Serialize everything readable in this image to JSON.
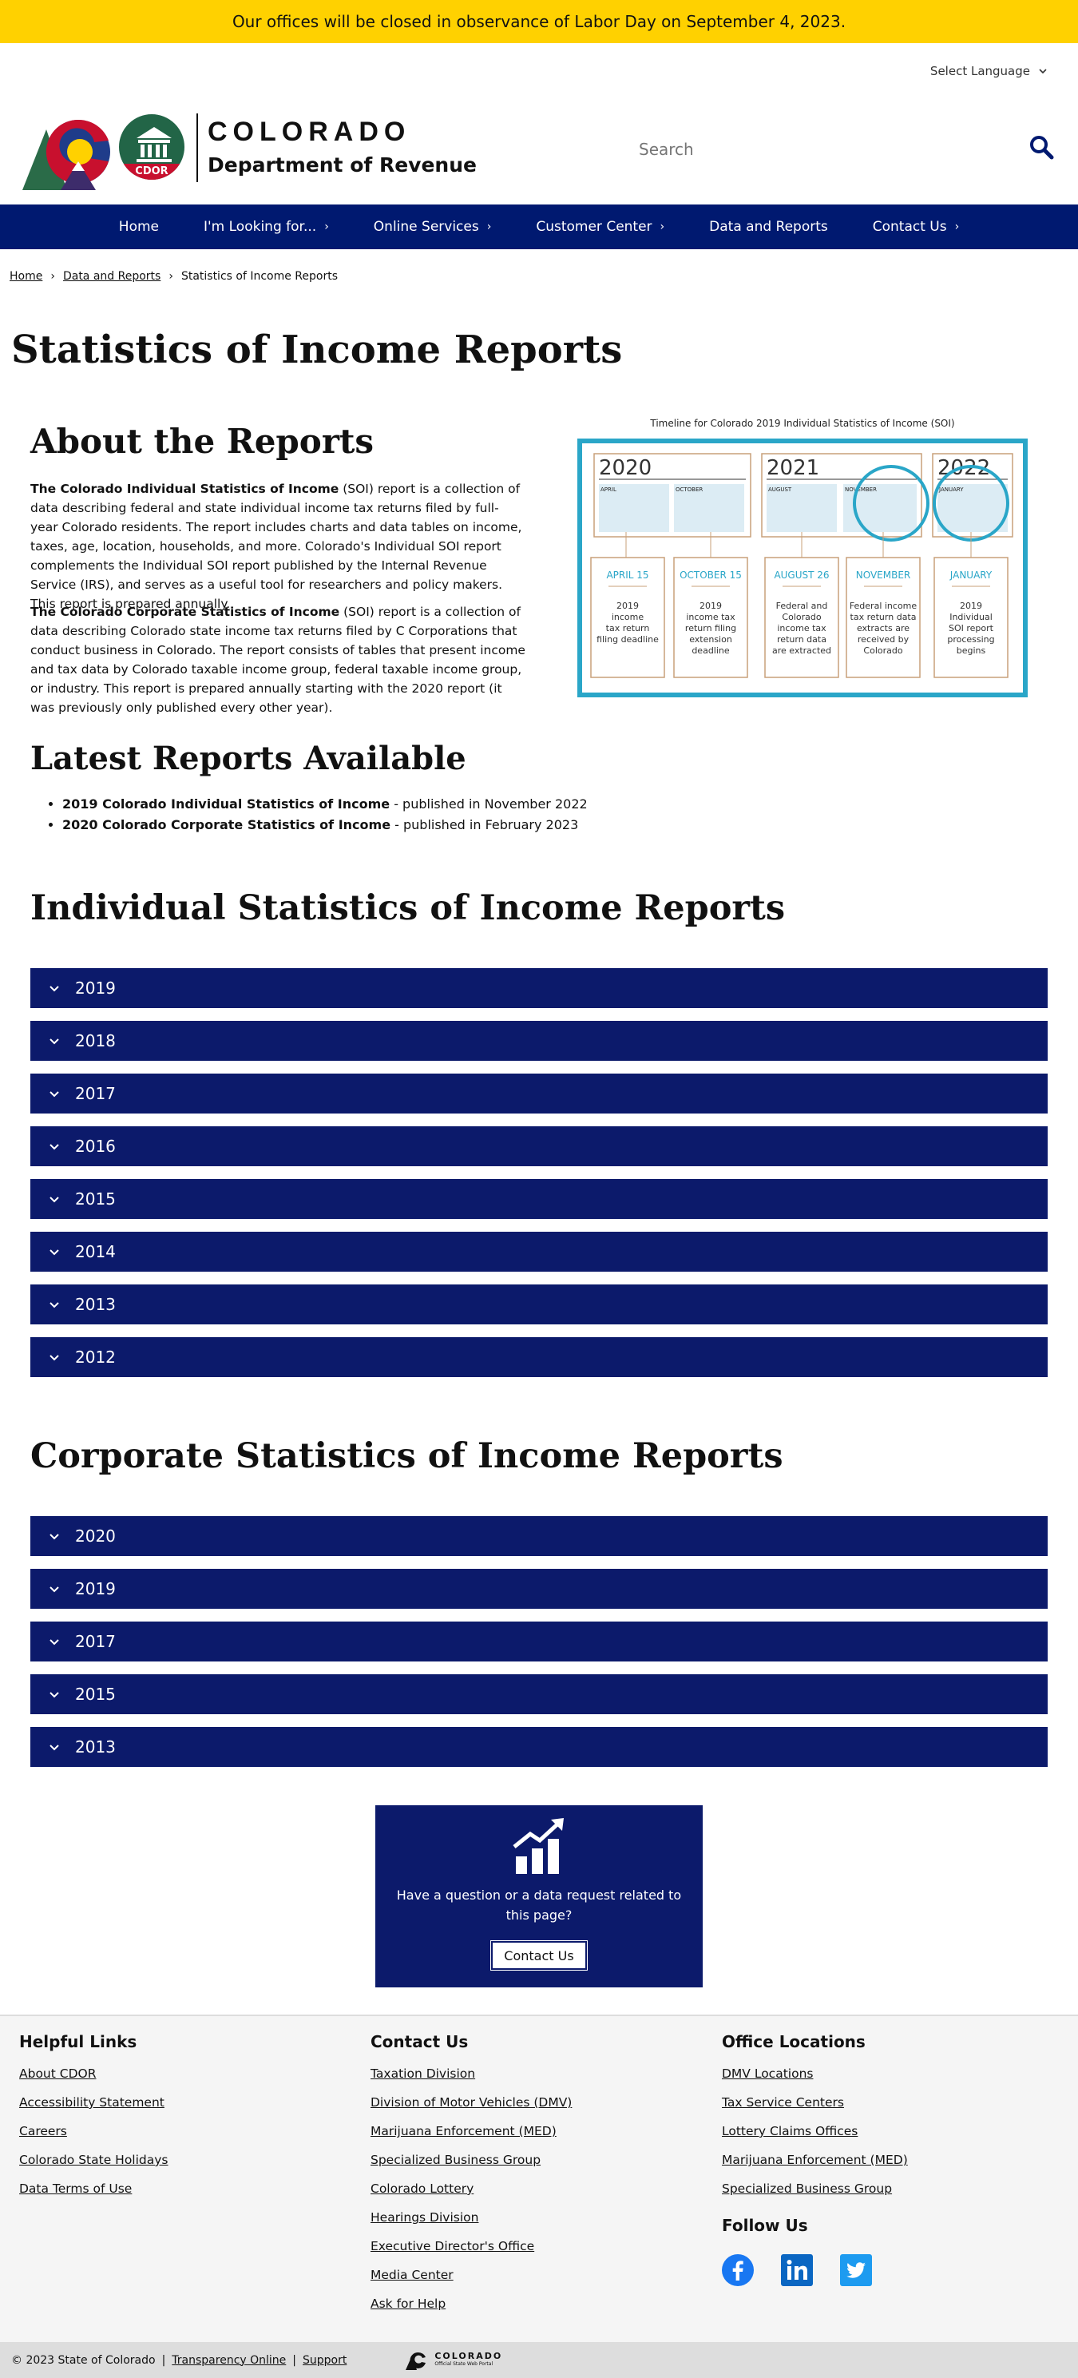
{
  "alert": {
    "text": "Our offices will be closed in observance of Labor Day on September 4, 2023."
  },
  "language": {
    "label": "Select Language"
  },
  "header": {
    "state_name": "COLORADO",
    "department": "Department of Revenue",
    "cdor_badge": "CDOR",
    "search_placeholder": "Search"
  },
  "nav": [
    {
      "label": "Home",
      "has_chevron": false
    },
    {
      "label": "I'm Looking for...",
      "has_chevron": true
    },
    {
      "label": "Online Services",
      "has_chevron": true
    },
    {
      "label": "Customer Center",
      "has_chevron": true
    },
    {
      "label": "Data and Reports",
      "has_chevron": false
    },
    {
      "label": "Contact Us",
      "has_chevron": true
    }
  ],
  "breadcrumb": {
    "home": "Home",
    "data": "Data and Reports",
    "current": "Statistics of Income Reports"
  },
  "page_title": "Statistics of Income Reports",
  "about": {
    "title": "About the Reports",
    "p1_bold": "The Colorado Individual Statistics of Income",
    "p1_rest": " (SOI) report is a collection of data describing federal and state individual income tax returns filed by full-year Colorado residents. The report includes charts and data tables on income, taxes, age, location, households, and more. Colorado's Individual SOI report complements the Individual SOI report published by the Internal Revenue Service (IRS), and serves as a useful tool for researchers and policy makers. This report is prepared annually.",
    "p2_bold": "The Colorado Corporate Statistics of Income",
    "p2_rest": " (SOI) report is a collection of data describing Colorado state income tax returns filed by C Corporations that conduct business in Colorado. The report consists of tables that present income and tax data by Colorado taxable income group, federal taxable income group, or industry. This report is prepared annually starting with the 2020 report (it was previously only published every other year)."
  },
  "timeline": {
    "title": "Timeline for Colorado 2019 Individual Statistics of Income (SOI)",
    "years": [
      "2020",
      "2021",
      "2022"
    ],
    "months": [
      "APRIL",
      "OCTOBER",
      "AUGUST",
      "NOVEMBER",
      "JANUARY"
    ],
    "cards": [
      {
        "date": "APRIL 15",
        "line1": "2019",
        "line2": "income",
        "line3": "tax return",
        "line4": "filing deadline",
        "line5": ""
      },
      {
        "date": "OCTOBER 15",
        "line1": "2019",
        "line2": "income tax",
        "line3": "return filing",
        "line4": "extension",
        "line5": "deadline"
      },
      {
        "date": "AUGUST 26",
        "line1": "Federal and",
        "line2": "Colorado",
        "line3": "income tax",
        "line4": "return data",
        "line5": "are extracted"
      },
      {
        "date": "NOVEMBER",
        "line1": "Federal income",
        "line2": "tax return data",
        "line3": "extracts are",
        "line4": "received by",
        "line5": "Colorado"
      },
      {
        "date": "JANUARY",
        "line1": "2019",
        "line2": "Individual",
        "line3": "SOI report",
        "line4": "processing",
        "line5": "begins"
      }
    ]
  },
  "latest": {
    "title": "Latest Reports Available",
    "items": [
      {
        "bold": "2019 Colorado Individual Statistics of Income",
        "rest": " - published in November 2022"
      },
      {
        "bold": "2020 Colorado Corporate Statistics of Income",
        "rest": " - published in February 2023"
      }
    ]
  },
  "individual": {
    "title": "Individual Statistics of Income Reports",
    "years": [
      "2019",
      "2018",
      "2017",
      "2016",
      "2015",
      "2014",
      "2013",
      "2012"
    ]
  },
  "corporate": {
    "title": "Corporate Statistics of Income Reports",
    "years": [
      "2020",
      "2019",
      "2017",
      "2015",
      "2013"
    ]
  },
  "cta": {
    "text": "Have a question or a data request related to this page?",
    "button": "Contact Us"
  },
  "footer": {
    "helpful": {
      "title": "Helpful Links",
      "links": [
        "About CDOR",
        "Accessibility Statement",
        "Careers",
        "Colorado State Holidays",
        "Data Terms of Use"
      ]
    },
    "contact": {
      "title": "Contact Us",
      "links": [
        "Taxation Division",
        "Division of Motor Vehicles (DMV)",
        "Marijuana Enforcement (MED)",
        "Specialized Business Group",
        "Colorado Lottery",
        "Hearings Division",
        "Executive Director's Office",
        "Media Center",
        "Ask for Help"
      ]
    },
    "offices": {
      "title": "Office Locations",
      "links": [
        "DMV Locations",
        "Tax Service Centers",
        "Lottery Claims Offices",
        "Marijuana Enforcement (MED)",
        "Specialized Business Group"
      ]
    },
    "follow": "Follow Us",
    "social_icons": [
      "facebook-icon",
      "linkedin-icon",
      "twitter-icon"
    ]
  },
  "bottom": {
    "copyright": "© 2023 State of Colorado",
    "transparency": "Transparency Online",
    "support": "Support",
    "brand_name": "COLORADO",
    "brand_sub": "Official State Web Portal"
  }
}
